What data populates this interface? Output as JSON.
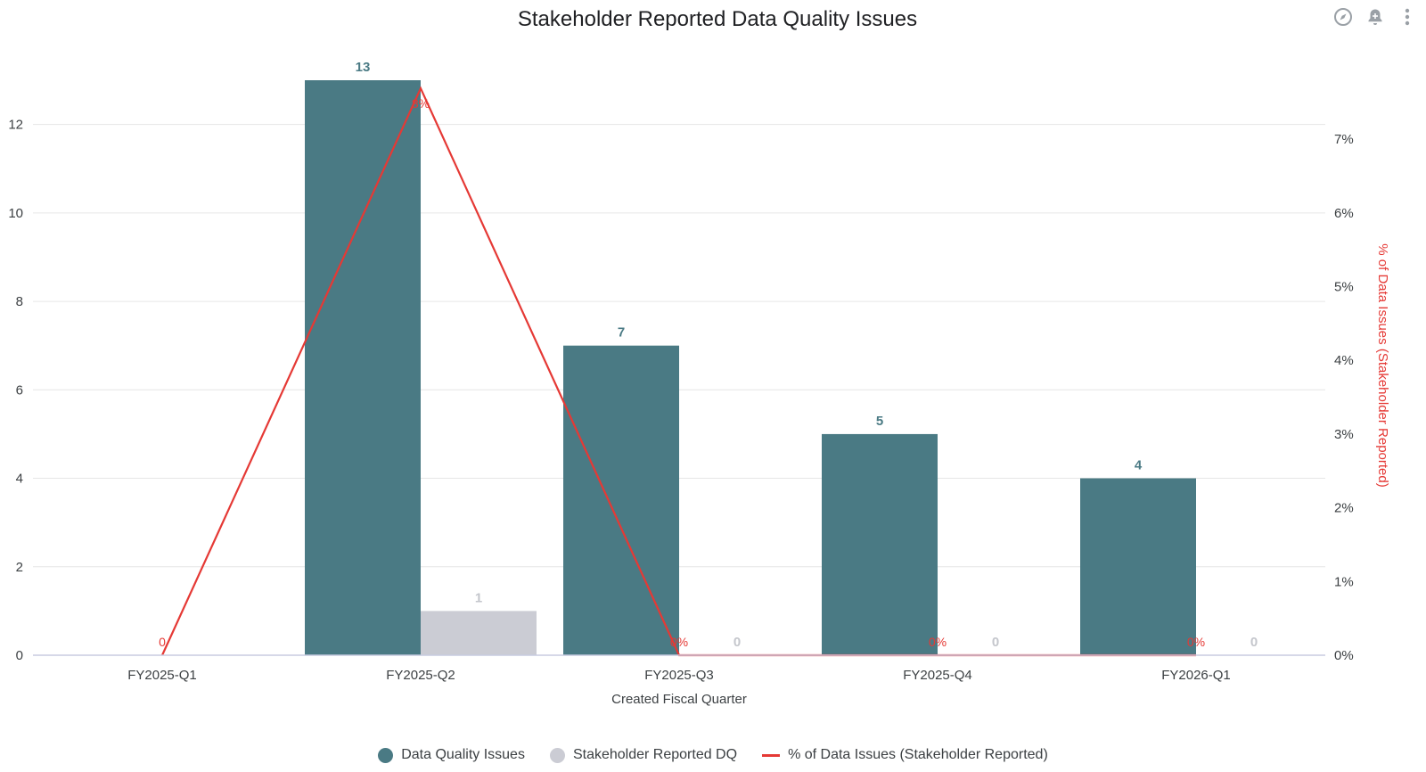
{
  "toolbar": {
    "icons": [
      "compass-icon",
      "bell-plus-icon",
      "more-vertical-icon"
    ]
  },
  "colors": {
    "issues": "#4a7a84",
    "stakeholder": "#cbccd4",
    "percent_line": "#e53935",
    "grid": "#e6e6e6",
    "axis_text": "#3c4043"
  },
  "chart_data": {
    "type": "bar",
    "title": "Stakeholder Reported Data Quality Issues",
    "xlabel": "Created Fiscal Quarter",
    "ylabel": "",
    "y2label": "% of Data Issues (Stakeholder Reported)",
    "categories": [
      "FY2025-Q1",
      "FY2025-Q2",
      "FY2025-Q3",
      "FY2025-Q4",
      "FY2026-Q1"
    ],
    "ylim": [
      0,
      13
    ],
    "yticks": [
      "0",
      "2",
      "4",
      "6",
      "8",
      "10",
      "12"
    ],
    "y2lim": [
      0,
      7.8
    ],
    "y2ticks": [
      "0%",
      "1%",
      "2%",
      "3%",
      "4%",
      "5%",
      "6%",
      "7%"
    ],
    "series": [
      {
        "name": "Data Quality Issues",
        "kind": "bar",
        "values": [
          0,
          13,
          7,
          5,
          4
        ],
        "labels": [
          "",
          "13",
          "7",
          "5",
          "4"
        ]
      },
      {
        "name": "Stakeholder Reported DQ",
        "kind": "bar",
        "values": [
          0,
          1,
          0,
          0,
          0
        ],
        "labels": [
          "",
          "1",
          "0",
          "0",
          "0"
        ]
      },
      {
        "name": "% of Data Issues (Stakeholder Reported)",
        "kind": "line",
        "axis": "right",
        "values": [
          0,
          7.69,
          0,
          0,
          0
        ],
        "labels": [
          "0",
          "8%",
          "0%",
          "0%",
          "0%"
        ]
      }
    ],
    "legend_position": "bottom",
    "grid": true
  }
}
